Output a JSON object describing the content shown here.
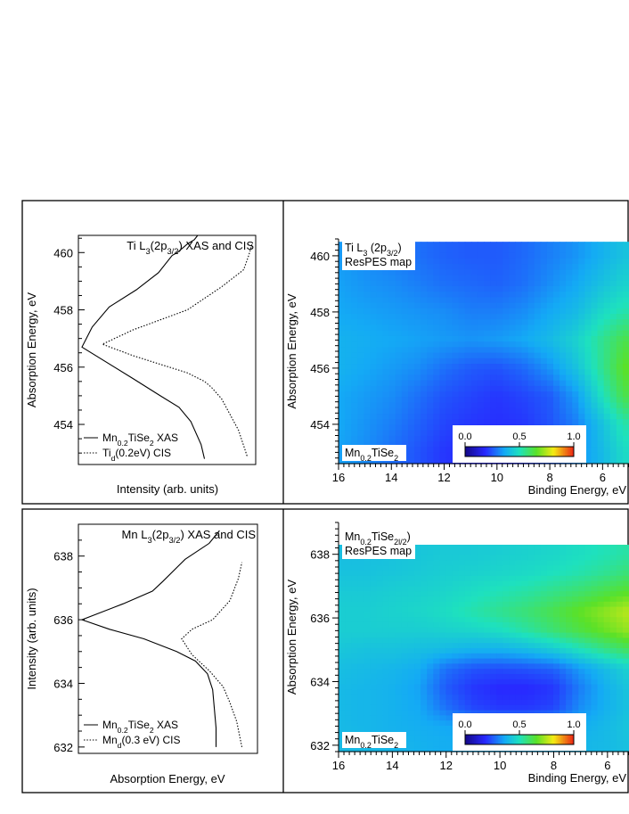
{
  "colors": {
    "frame": "#000000",
    "xas_line": "#000000",
    "cis_line": "#000000"
  },
  "chart_data": [
    {
      "type": "line",
      "panel": "top-left",
      "title": {
        "pre": "Ti L",
        "sub": "3",
        "mid": "(2p",
        "sub2": "3/2",
        "post": ") XAS and CIS"
      },
      "xlabel": "Intensity (arb. units)",
      "ylabel": "Absorption Energy, eV",
      "ylim": [
        452.6,
        460.6
      ],
      "yticks": [
        "454",
        "456",
        "458",
        "460"
      ],
      "series": [
        {
          "name": "Mn0.2TiSe2 XAS",
          "label": {
            "pre": "Mn",
            "sub": "0.2",
            "post": "TiSe",
            "sub2": "2",
            "tail": " XAS"
          },
          "style": "solid",
          "x": [
            0.72,
            0.7,
            0.64,
            0.57,
            0.46,
            0.3,
            0.0,
            0.06,
            0.16,
            0.32,
            0.45,
            0.53,
            0.56,
            0.62,
            0.66,
            0.68
          ],
          "y": [
            452.8,
            453.3,
            454.1,
            454.6,
            455.0,
            455.6,
            456.7,
            457.4,
            458.1,
            458.7,
            459.3,
            459.9,
            460.0,
            460.3,
            460.45,
            460.6
          ]
        },
        {
          "name": "Tid(0.2eV) CIS",
          "label": {
            "pre": "Ti",
            "sub": "d",
            "post": "(0.2eV) CIS",
            "sub2": "",
            "tail": ""
          },
          "style": "dotted",
          "x": [
            0.97,
            0.92,
            0.82,
            0.76,
            0.72,
            0.62,
            0.46,
            0.3,
            0.12,
            0.3,
            0.62,
            0.82,
            0.95,
            0.98,
            1.0
          ],
          "y": [
            452.9,
            453.8,
            454.9,
            455.3,
            455.5,
            455.8,
            456.1,
            456.4,
            456.8,
            457.3,
            458.0,
            458.8,
            459.4,
            459.9,
            460.3
          ]
        }
      ]
    },
    {
      "type": "heatmap",
      "panel": "top-right",
      "title": {
        "pre": "Ti L",
        "sub": "3",
        "mid": " (2p",
        "sub2": "3/2",
        "post": ")"
      },
      "subtitle": "ResPES map",
      "sample": {
        "pre": "Mn",
        "sub": "0.2",
        "post": "TiSe",
        "sub2": "2"
      },
      "xlabel": "Binding Energy, eV",
      "ylabel": "Absorption Energy, eV",
      "xlim": [
        16,
        5
      ],
      "ylim": [
        452.6,
        460.6
      ],
      "xticks": [
        "16",
        "14",
        "12",
        "10",
        "8",
        "6"
      ],
      "yticks": [
        "454",
        "456",
        "458",
        "460"
      ],
      "colorbar": {
        "ticks": [
          "0.0",
          "0.5",
          "1.0"
        ],
        "range": [
          0,
          1
        ]
      },
      "x": [
        16,
        15,
        14,
        13,
        12,
        11,
        10,
        9,
        8,
        7,
        6,
        5.2
      ],
      "y": [
        453,
        454,
        455,
        456,
        457,
        458,
        459,
        460
      ],
      "z": [
        [
          0.35,
          0.32,
          0.28,
          0.24,
          0.2,
          0.18,
          0.18,
          0.2,
          0.25,
          0.32,
          0.4,
          0.48
        ],
        [
          0.36,
          0.33,
          0.3,
          0.26,
          0.22,
          0.2,
          0.19,
          0.2,
          0.24,
          0.3,
          0.42,
          0.52
        ],
        [
          0.36,
          0.34,
          0.32,
          0.28,
          0.24,
          0.22,
          0.2,
          0.22,
          0.25,
          0.34,
          0.5,
          0.62
        ],
        [
          0.38,
          0.36,
          0.34,
          0.32,
          0.28,
          0.25,
          0.24,
          0.27,
          0.33,
          0.42,
          0.55,
          0.66
        ],
        [
          0.38,
          0.37,
          0.36,
          0.35,
          0.34,
          0.33,
          0.34,
          0.36,
          0.4,
          0.46,
          0.55,
          0.62
        ],
        [
          0.36,
          0.35,
          0.34,
          0.33,
          0.32,
          0.3,
          0.3,
          0.32,
          0.36,
          0.4,
          0.48,
          0.52
        ],
        [
          0.35,
          0.33,
          0.32,
          0.3,
          0.28,
          0.27,
          0.26,
          0.28,
          0.32,
          0.36,
          0.42,
          0.46
        ],
        [
          0.34,
          0.32,
          0.3,
          0.28,
          0.26,
          0.25,
          0.25,
          0.27,
          0.3,
          0.33,
          0.38,
          0.42
        ]
      ]
    },
    {
      "type": "line",
      "panel": "bottom-left",
      "title": {
        "pre": "Mn L",
        "sub": "3",
        "mid": "(2p",
        "sub2": "3/2",
        "post": ") XAS and CIS"
      },
      "xlabel": "Absorption Energy, eV",
      "ylabel": "Intensity (arb. units)",
      "ylim": [
        631.8,
        639
      ],
      "yticks": [
        "632",
        "634",
        "636",
        "638"
      ],
      "series": [
        {
          "name": "Mn0.2TiSe2 XAS",
          "label": {
            "pre": "Mn",
            "sub": "0.2",
            "post": "TiSe",
            "sub2": "2",
            "tail": " XAS"
          },
          "style": "solid",
          "x": [
            0.78,
            0.78,
            0.77,
            0.76,
            0.73,
            0.66,
            0.55,
            0.36,
            0.16,
            0.0,
            0.24,
            0.41,
            0.47,
            0.6,
            0.74,
            0.8
          ],
          "y": [
            632.0,
            632.6,
            633.2,
            633.8,
            634.3,
            634.7,
            635.0,
            635.4,
            635.7,
            636.0,
            636.5,
            636.9,
            637.2,
            637.9,
            638.4,
            638.8
          ]
        },
        {
          "name": "Mnd(0.3 eV) CIS",
          "label": {
            "pre": "Mn",
            "sub": "d",
            "post": "(0.3 eV) CIS",
            "sub2": "",
            "tail": ""
          },
          "style": "dotted",
          "x": [
            0.93,
            0.9,
            0.86,
            0.82,
            0.74,
            0.64,
            0.58,
            0.64,
            0.76,
            0.86,
            0.91,
            0.93
          ],
          "y": [
            632.0,
            632.8,
            633.4,
            633.9,
            634.4,
            634.9,
            635.4,
            635.7,
            636.0,
            636.6,
            637.3,
            637.8
          ]
        }
      ]
    },
    {
      "type": "heatmap",
      "panel": "bottom-right",
      "title": {
        "pre": "Mn",
        "sub": "0.2",
        "mid": "TiSe",
        "sub2": "2l/2",
        "post": ")"
      },
      "subtitle": "ResPES map",
      "sample": {
        "pre": "Mn",
        "sub": "0.2",
        "post": "TiSe",
        "sub2": "2"
      },
      "xlabel": "Binding Energy, eV",
      "ylabel": "Absorption Energy, eV",
      "xlim": [
        16,
        5.2
      ],
      "ylim": [
        631.8,
        639
      ],
      "xticks": [
        "16",
        "14",
        "12",
        "10",
        "8",
        "6"
      ],
      "yticks": [
        "632",
        "634",
        "636",
        "638"
      ],
      "colorbar": {
        "ticks": [
          "0.0",
          "0.5",
          "1.0"
        ],
        "range": [
          0,
          1
        ]
      },
      "x": [
        16,
        15,
        14,
        13,
        12,
        11,
        10,
        9,
        8,
        7,
        6,
        5.2
      ],
      "y": [
        632.1,
        632.6,
        633.2,
        633.8,
        634.4,
        635,
        635.6,
        636.2,
        636.8,
        637.4,
        638
      ],
      "z": [
        [
          0.4,
          0.4,
          0.39,
          0.38,
          0.37,
          0.37,
          0.37,
          0.37,
          0.38,
          0.39,
          0.4,
          0.42
        ],
        [
          0.4,
          0.39,
          0.38,
          0.37,
          0.36,
          0.34,
          0.34,
          0.34,
          0.35,
          0.37,
          0.4,
          0.43
        ],
        [
          0.4,
          0.39,
          0.38,
          0.36,
          0.28,
          0.22,
          0.2,
          0.2,
          0.22,
          0.32,
          0.38,
          0.42
        ],
        [
          0.4,
          0.39,
          0.38,
          0.35,
          0.25,
          0.2,
          0.18,
          0.18,
          0.2,
          0.3,
          0.38,
          0.43
        ],
        [
          0.41,
          0.4,
          0.39,
          0.37,
          0.28,
          0.24,
          0.23,
          0.24,
          0.26,
          0.34,
          0.41,
          0.46
        ],
        [
          0.43,
          0.42,
          0.42,
          0.41,
          0.4,
          0.38,
          0.38,
          0.4,
          0.44,
          0.5,
          0.56,
          0.6
        ],
        [
          0.45,
          0.45,
          0.45,
          0.45,
          0.46,
          0.47,
          0.49,
          0.53,
          0.58,
          0.63,
          0.68,
          0.72
        ],
        [
          0.45,
          0.45,
          0.46,
          0.47,
          0.49,
          0.52,
          0.55,
          0.58,
          0.62,
          0.67,
          0.72,
          0.76
        ],
        [
          0.44,
          0.44,
          0.45,
          0.46,
          0.47,
          0.49,
          0.51,
          0.53,
          0.56,
          0.59,
          0.63,
          0.66
        ],
        [
          0.42,
          0.42,
          0.43,
          0.44,
          0.45,
          0.46,
          0.47,
          0.48,
          0.5,
          0.52,
          0.55,
          0.58
        ],
        [
          0.41,
          0.41,
          0.42,
          0.43,
          0.44,
          0.44,
          0.45,
          0.46,
          0.47,
          0.49,
          0.51,
          0.53
        ]
      ]
    }
  ]
}
